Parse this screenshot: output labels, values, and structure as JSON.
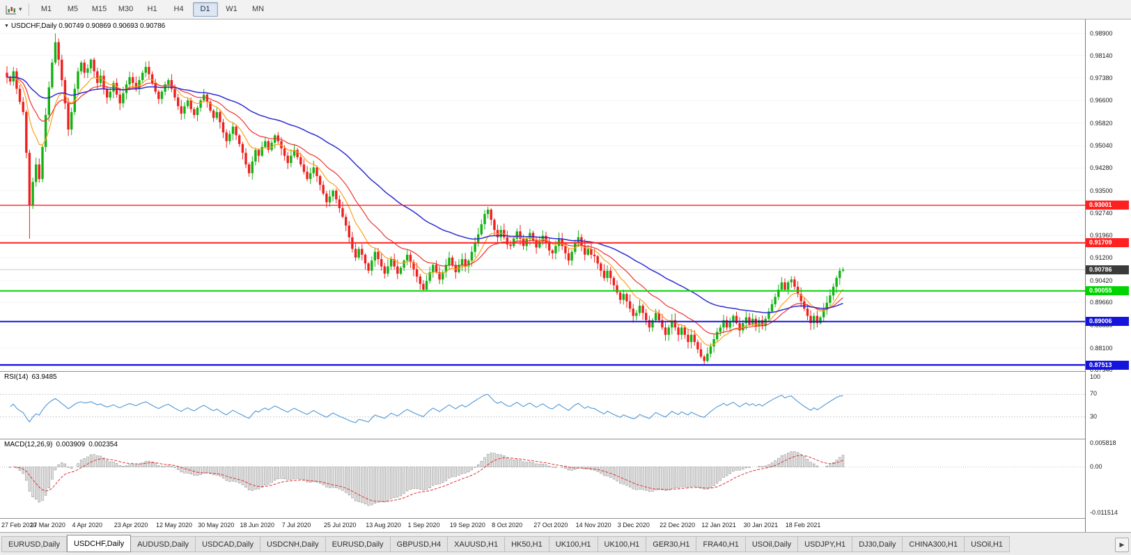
{
  "toolbar": {
    "timeframes": [
      "M1",
      "M5",
      "M15",
      "M30",
      "H1",
      "H4",
      "D1",
      "W1",
      "MN"
    ],
    "active_timeframe": "D1",
    "caret": "▾"
  },
  "chart": {
    "symbol_period": "USDCHF,Daily",
    "ohlc_text": "0.90749 0.90869 0.90693 0.90786",
    "menu_icon": "▼"
  },
  "price_axis_labels": [
    "0.98900",
    "0.98140",
    "0.97380",
    "0.96600",
    "0.95820",
    "0.95040",
    "0.94280",
    "0.93500",
    "0.92740",
    "0.91960",
    "0.91200",
    "0.90420",
    "0.89660",
    "0.88880",
    "0.88100",
    "0.87340"
  ],
  "hlines": [
    {
      "value": 0.93001,
      "label": "0.93001",
      "color": "#ff2020",
      "width": 1.4
    },
    {
      "value": 0.91709,
      "label": "0.91709",
      "color": "#ff2020",
      "width": 2
    },
    {
      "value": 0.90055,
      "label": "0.90055",
      "color": "#00d400",
      "width": 2
    },
    {
      "value": 0.89006,
      "label": "0.89006",
      "color": "#1414dd",
      "width": 2
    },
    {
      "value": 0.87513,
      "label": "0.87513",
      "color": "#1414dd",
      "width": 2.4
    }
  ],
  "current_price": {
    "value": 0.90786,
    "label": "0.90786",
    "badge_bg": "#3a3a3a"
  },
  "rsi": {
    "name": "RSI(14)",
    "value": "63.9485",
    "levels": [
      "100",
      "70",
      "30"
    ],
    "level_values": [
      100,
      70,
      30
    ],
    "dashed_levels": [
      70,
      30
    ],
    "line_color": "#4e97d6"
  },
  "macd": {
    "name": "MACD(12,26,9)",
    "main": "0.003909",
    "signal": "0.002354",
    "axis_labels": [
      "0.005818",
      "0.00",
      "-0.011514"
    ],
    "axis_values": [
      0.005818,
      0,
      -0.011514
    ],
    "ylim": [
      -0.011514,
      0.005818
    ],
    "signal_color": "#e03232",
    "hist_fill": "#e2e2e2",
    "hist_stroke": "#949494"
  },
  "time_axis": [
    "27 Feb 2020",
    "17 Mar 2020",
    "4 Apr 2020",
    "23 Apr 2020",
    "12 May 2020",
    "30 May 2020",
    "18 Jun 2020",
    "7 Jul 2020",
    "25 Jul 2020",
    "13 Aug 2020",
    "1 Sep 2020",
    "19 Sep 2020",
    "8 Oct 2020",
    "27 Oct 2020",
    "14 Nov 2020",
    "3 Dec 2020",
    "22 Dec 2020",
    "12 Jan 2021",
    "30 Jan 2021",
    "18 Feb 2021"
  ],
  "tabs": {
    "items": [
      "EURUSD,Daily",
      "USDCHF,Daily",
      "AUDUSD,Daily",
      "USDCAD,Daily",
      "USDCNH,Daily",
      "EURUSD,Daily",
      "GBPUSD,H4",
      "XAUUSD,H1",
      "HK50,H1",
      "UK100,H1",
      "UK100,H1",
      "GER30,H1",
      "FRA40,H1",
      "USOil,Daily",
      "USDJPY,H1",
      "DJ30,Daily",
      "CHINA300,H1",
      "USOil,H1"
    ],
    "active_index": 1,
    "scroll_icon": "▶"
  },
  "chart_data": {
    "type": "candlestick",
    "symbol": "USDCHF",
    "timeframe": "Daily",
    "ohlc_current": {
      "open": 0.90749,
      "high": 0.90869,
      "low": 0.90693,
      "close": 0.90786
    },
    "ylim": [
      0.873,
      0.9938
    ],
    "first_open": 0.9755,
    "last_open": 0.90749,
    "up_color": "#12b212",
    "down_color": "#ee1f1f",
    "moving_averages": [
      {
        "period": 10,
        "color": "#ff9f1a",
        "width": 1.2
      },
      {
        "period": 21,
        "color": "#f03030",
        "width": 1.2
      },
      {
        "period": 55,
        "color": "#2b2bd4",
        "width": 1.5
      }
    ],
    "wick_overrides": {
      "7": [
        null,
        0.9185
      ],
      "15": [
        0.989,
        null
      ],
      "149": [
        0.9295,
        null
      ],
      "216": [
        null,
        0.8754
      ],
      "259": [
        0.90869,
        0.90693
      ]
    },
    "closes": [
      0.974,
      0.9725,
      0.976,
      0.97,
      0.9655,
      0.962,
      0.948,
      0.93,
      0.938,
      0.944,
      0.939,
      0.95,
      0.961,
      0.9705,
      0.979,
      0.986,
      0.98,
      0.973,
      0.965,
      0.956,
      0.962,
      0.97,
      0.976,
      0.979,
      0.9755,
      0.977,
      0.98,
      0.976,
      0.972,
      0.9745,
      0.97,
      0.967,
      0.969,
      0.972,
      0.968,
      0.965,
      0.9685,
      0.9715,
      0.974,
      0.972,
      0.97,
      0.973,
      0.9755,
      0.9775,
      0.975,
      0.972,
      0.969,
      0.9665,
      0.969,
      0.9715,
      0.973,
      0.97,
      0.967,
      0.964,
      0.9615,
      0.964,
      0.966,
      0.963,
      0.961,
      0.9635,
      0.966,
      0.968,
      0.9655,
      0.9625,
      0.96,
      0.962,
      0.9585,
      0.955,
      0.952,
      0.9545,
      0.957,
      0.954,
      0.951,
      0.948,
      0.944,
      0.941,
      0.945,
      0.949,
      0.947,
      0.95,
      0.952,
      0.949,
      0.9515,
      0.954,
      0.952,
      0.9495,
      0.947,
      0.9445,
      0.947,
      0.949,
      0.9465,
      0.944,
      0.9415,
      0.939,
      0.941,
      0.943,
      0.94,
      0.937,
      0.934,
      0.931,
      0.933,
      0.935,
      0.932,
      0.929,
      0.926,
      0.923,
      0.919,
      0.915,
      0.912,
      0.915,
      0.913,
      0.91,
      0.9075,
      0.911,
      0.914,
      0.9115,
      0.909,
      0.9065,
      0.909,
      0.9115,
      0.909,
      0.9065,
      0.9085,
      0.911,
      0.913,
      0.9105,
      0.908,
      0.9055,
      0.903,
      0.901,
      0.904,
      0.907,
      0.9095,
      0.907,
      0.9045,
      0.907,
      0.9095,
      0.912,
      0.9095,
      0.907,
      0.9095,
      0.9115,
      0.909,
      0.911,
      0.914,
      0.917,
      0.92,
      0.9235,
      0.927,
      0.9285,
      0.925,
      0.9215,
      0.919,
      0.9215,
      0.919,
      0.9165,
      0.916,
      0.9185,
      0.921,
      0.9185,
      0.916,
      0.9185,
      0.9205,
      0.918,
      0.9155,
      0.9175,
      0.9195,
      0.917,
      0.9145,
      0.9135,
      0.916,
      0.9185,
      0.916,
      0.9135,
      0.911,
      0.914,
      0.917,
      0.919,
      0.916,
      0.913,
      0.915,
      0.913,
      0.9125,
      0.91,
      0.9075,
      0.905,
      0.9075,
      0.905,
      0.9025,
      0.9,
      0.8975,
      0.8995,
      0.897,
      0.8945,
      0.892,
      0.893,
      0.8955,
      0.893,
      0.8905,
      0.888,
      0.8905,
      0.893,
      0.8905,
      0.888,
      0.8855,
      0.888,
      0.8905,
      0.888,
      0.8855,
      0.888,
      0.8855,
      0.883,
      0.8855,
      0.883,
      0.8805,
      0.878,
      0.8765,
      0.879,
      0.8815,
      0.884,
      0.8865,
      0.888,
      0.8905,
      0.888,
      0.89,
      0.892,
      0.8895,
      0.887,
      0.8895,
      0.8915,
      0.889,
      0.891,
      0.8885,
      0.8905,
      0.8885,
      0.891,
      0.8935,
      0.896,
      0.8985,
      0.901,
      0.9035,
      0.901,
      0.9035,
      0.9045,
      0.902,
      0.8995,
      0.897,
      0.8945,
      0.892,
      0.8895,
      0.892,
      0.8895,
      0.8915,
      0.894,
      0.8965,
      0.899,
      0.902,
      0.905,
      0.9075,
      0.90786
    ]
  }
}
